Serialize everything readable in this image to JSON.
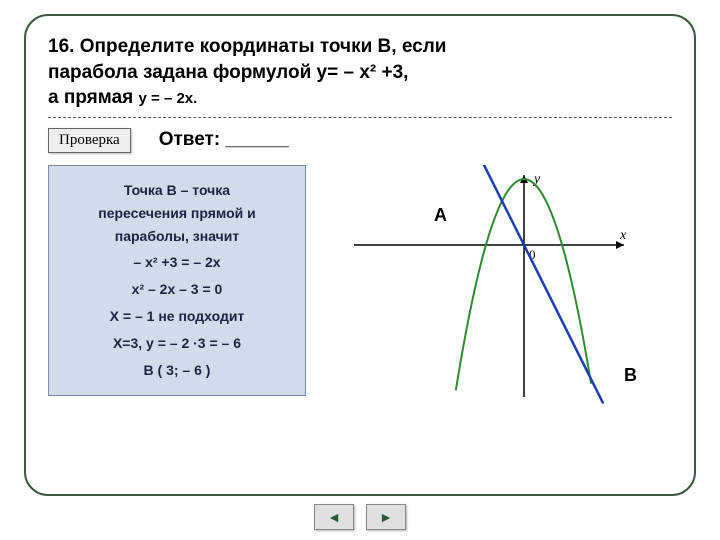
{
  "problem": {
    "number": "16.",
    "line1": "Определите координаты точки В, если",
    "line2": "парабола задана формулой y= – x² +3,",
    "line3": "а прямая",
    "line3_sub": "y = – 2x."
  },
  "check_button": "Проверка",
  "answer_label": "Ответ: ______",
  "solution": {
    "intro1": "Точка В – точка",
    "intro2": "пересечения прямой и",
    "intro3": "параболы, значит",
    "eq1": "– x² +3 = – 2x",
    "eq2": "x² – 2x – 3 = 0",
    "eq3": "Х = – 1 не подходит",
    "eq4": "Х=3, y = – 2 ·3 = – 6",
    "eq5": "В ( 3; – 6 )"
  },
  "chart": {
    "axis_color": "#000000",
    "parabola_color": "#2e8b2e",
    "line_color": "#1a3db0",
    "background": "#ffffff",
    "x_label": "x",
    "y_label": "y",
    "origin_label": "0",
    "point_A": "А",
    "point_B": "В",
    "xlim": [
      -6,
      6
    ],
    "ylim": [
      -7,
      5
    ],
    "parabola": "y = -x^2 + 3",
    "line": "y = -2x",
    "A_pos": [
      -1,
      2
    ],
    "B_pos": [
      3,
      -6
    ],
    "stroke_width_curve": 2,
    "stroke_width_axis": 1.5,
    "arrow_size": 6
  },
  "nav": {
    "prev": "◄",
    "next": "►"
  },
  "colors": {
    "frame_border": "#3d5a3d",
    "solution_bg": "#d0dcea",
    "solution_border": "#7a8aa6",
    "button_bg": "#eeeeee"
  }
}
